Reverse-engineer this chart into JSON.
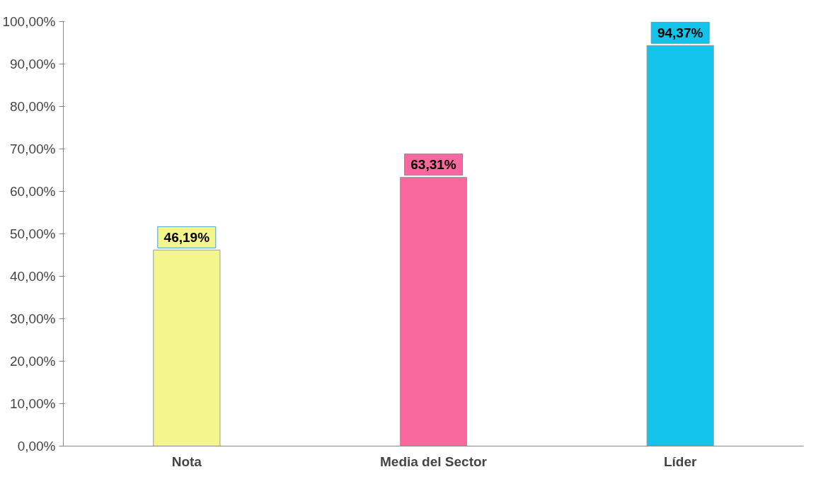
{
  "chart_data": {
    "type": "bar",
    "categories": [
      "Nota",
      "Media del Sector",
      "Líder"
    ],
    "values": [
      46.19,
      63.31,
      94.37
    ],
    "colors": [
      "#f5f58e",
      "#f7699c",
      "#13c3ea"
    ],
    "value_labels": [
      "46,19%",
      "63,31%",
      "94,37%"
    ],
    "ylim": [
      0,
      100
    ],
    "yticks": [
      {
        "value": 0,
        "label": "0,00%"
      },
      {
        "value": 10,
        "label": "10,00%"
      },
      {
        "value": 20,
        "label": "20,00%"
      },
      {
        "value": 30,
        "label": "30,00%"
      },
      {
        "value": 40,
        "label": "40,00%"
      },
      {
        "value": 50,
        "label": "50,00%"
      },
      {
        "value": 60,
        "label": "60,00%"
      },
      {
        "value": 70,
        "label": "70,00%"
      },
      {
        "value": 80,
        "label": "80,00%"
      },
      {
        "value": 90,
        "label": "90,00%"
      },
      {
        "value": 100,
        "label": "100,00%"
      }
    ],
    "grid": false
  }
}
